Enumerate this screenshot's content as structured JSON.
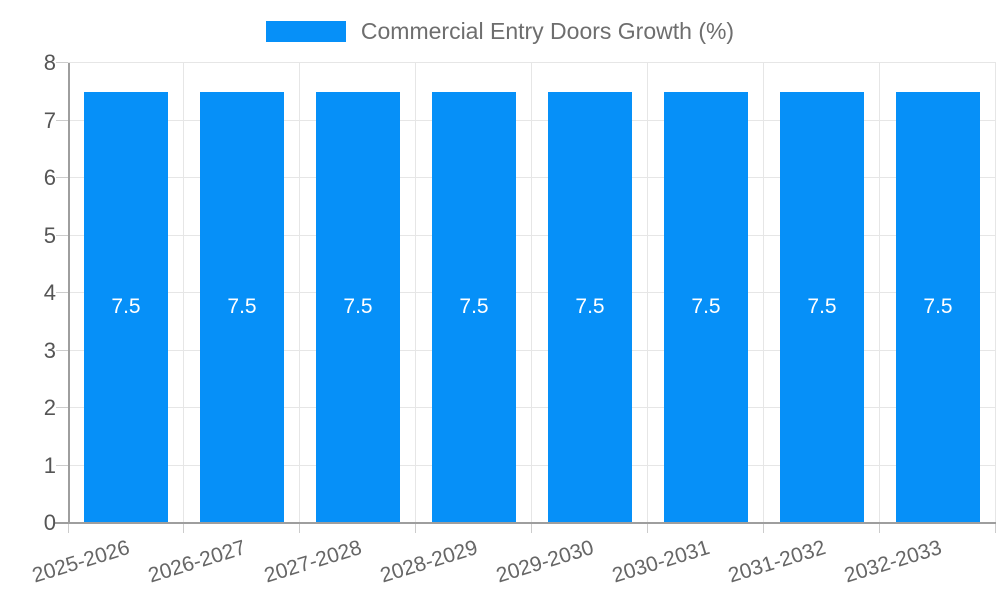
{
  "legend": {
    "label": "Commercial Entry Doors Growth (%)"
  },
  "chart_data": {
    "type": "bar",
    "title": "Commercial Entry Doors Growth (%)",
    "categories": [
      "2025-2026",
      "2026-2027",
      "2027-2028",
      "2028-2029",
      "2029-2030",
      "2030-2031",
      "2031-2032",
      "2032-2033"
    ],
    "series": [
      {
        "name": "Commercial Entry Doors Growth (%)",
        "values": [
          7.5,
          7.5,
          7.5,
          7.5,
          7.5,
          7.5,
          7.5,
          7.5
        ]
      }
    ],
    "data_labels": [
      "7.5",
      "7.5",
      "7.5",
      "7.5",
      "7.5",
      "7.5",
      "7.5",
      "7.5"
    ],
    "xlabel": "",
    "ylabel": "",
    "ylim": [
      0,
      8
    ],
    "yticks": [
      0,
      1,
      2,
      3,
      4,
      5,
      6,
      7,
      8
    ],
    "grid": true,
    "legend_position": "top",
    "colors": {
      "bar": "#0690f8",
      "data_label": "#ffffff",
      "axis_line": "#9e9e9e",
      "gridline": "#e6e6e6",
      "tick": "#cccccc",
      "y_label_text": "#555555",
      "x_label_text": "#666666",
      "legend_text": "#6e6e6e",
      "background": "#ffffff"
    }
  }
}
